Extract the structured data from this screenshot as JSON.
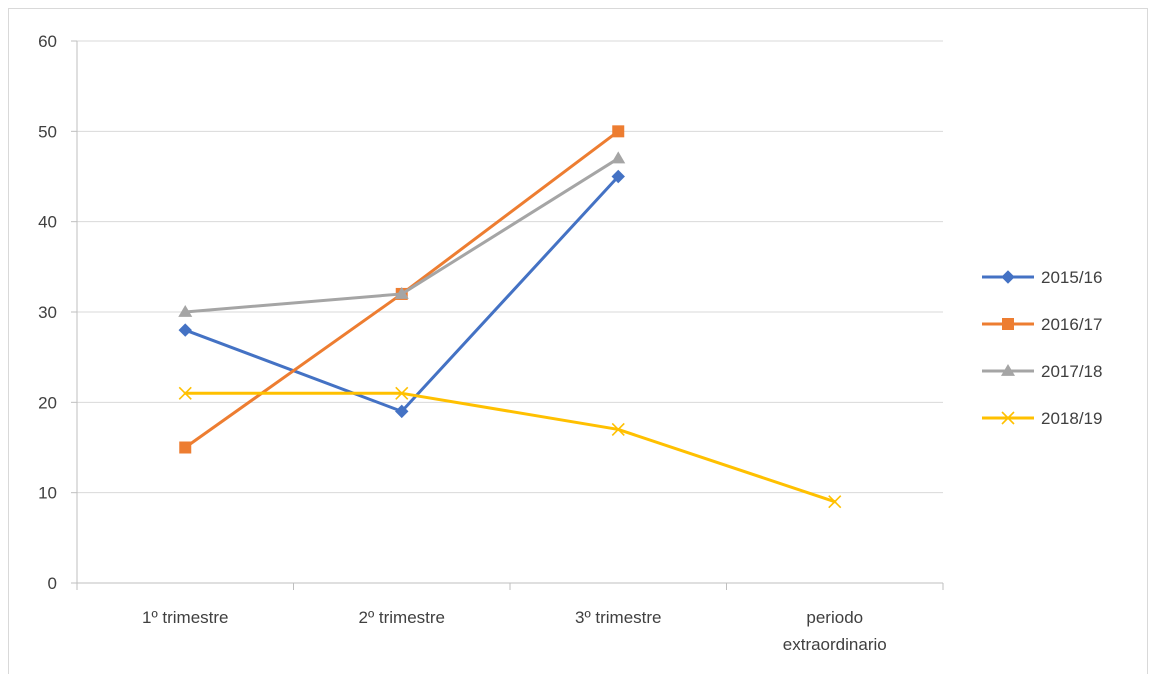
{
  "chart_data": {
    "type": "line",
    "title": "",
    "xlabel": "",
    "ylabel": "",
    "ylim": [
      0,
      60
    ],
    "yticks": [
      0,
      10,
      20,
      30,
      40,
      50,
      60
    ],
    "grid": true,
    "legend_position": "right",
    "categories": [
      [
        "1º trimestre"
      ],
      [
        "2º trimestre"
      ],
      [
        "3º trimestre"
      ],
      [
        "periodo",
        "extraordinario"
      ]
    ],
    "series": [
      {
        "name": "2015/16",
        "color": "#4472C4",
        "marker": "diamond",
        "values": [
          28,
          19,
          45,
          null
        ]
      },
      {
        "name": "2016/17",
        "color": "#ED7D31",
        "marker": "square",
        "values": [
          15,
          32,
          50,
          null
        ]
      },
      {
        "name": "2017/18",
        "color": "#A5A5A5",
        "marker": "triangle",
        "values": [
          30,
          32,
          47,
          null
        ]
      },
      {
        "name": "2018/19",
        "color": "#FFC000",
        "marker": "x",
        "values": [
          21,
          21,
          17,
          9
        ]
      }
    ]
  }
}
